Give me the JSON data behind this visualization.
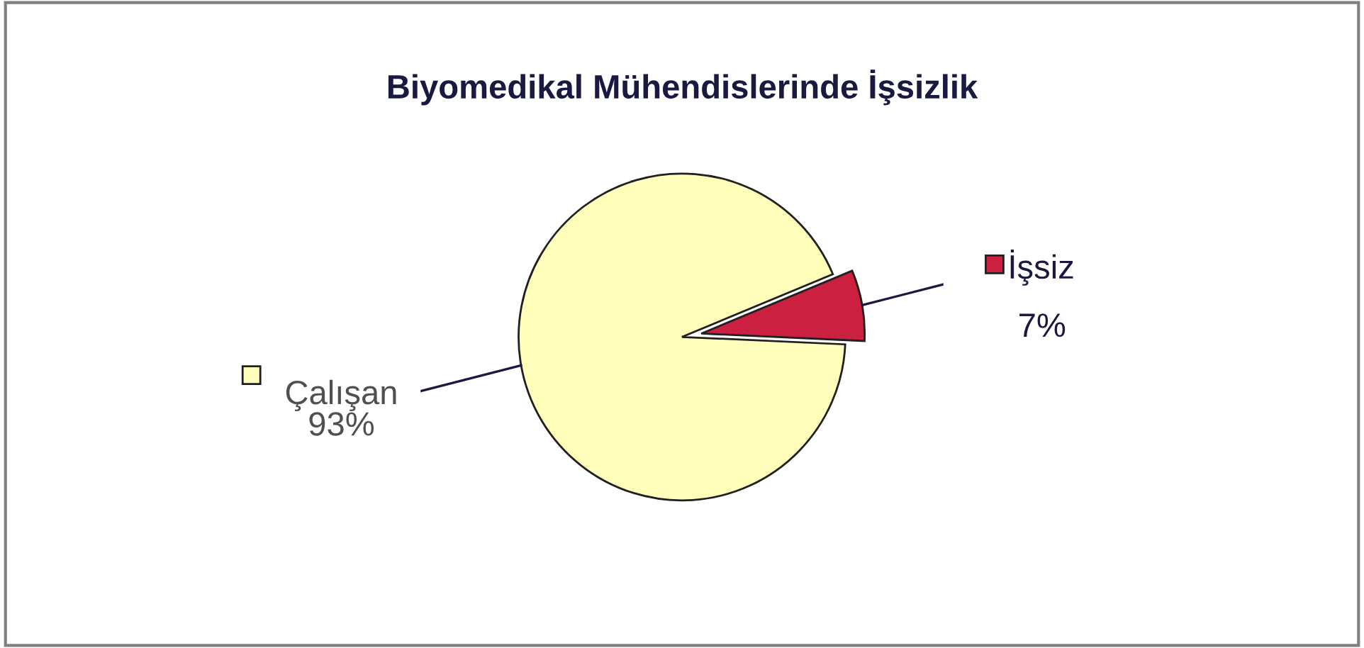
{
  "chart_data": {
    "type": "pie",
    "title": "Biyomedikal Mühendislerinde İşsizlik",
    "categories": [
      "Çalışan",
      "İşsiz"
    ],
    "values": [
      93,
      7
    ],
    "colors": [
      "#ffffbb",
      "#cc2040"
    ],
    "value_labels": [
      "93%",
      "7%"
    ],
    "legend": "top left"
  }
}
